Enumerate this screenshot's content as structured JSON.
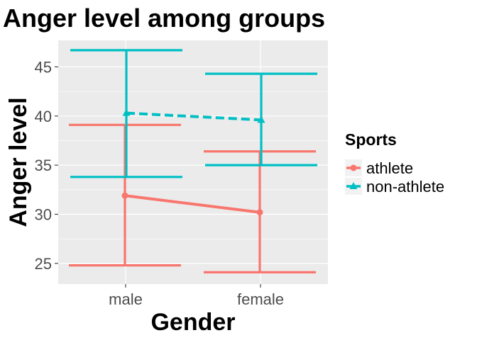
{
  "chart_data": {
    "type": "line",
    "title": "Anger level among groups",
    "xlabel": "Gender",
    "ylabel": "Anger level",
    "categories": [
      "male",
      "female"
    ],
    "ylim": [
      22.9,
      47.7
    ],
    "yticks": [
      25,
      30,
      35,
      40,
      45
    ],
    "grid": true,
    "legend": {
      "title": "Sports",
      "position": "right"
    },
    "series": [
      {
        "name": "athlete",
        "color": "#F8766D",
        "linestyle": "solid",
        "marker": "circle",
        "values": [
          31.9,
          30.2
        ],
        "lower": [
          24.8,
          24.1
        ],
        "upper": [
          39.1,
          36.4
        ]
      },
      {
        "name": "non-athlete",
        "color": "#00BFC4",
        "linestyle": "dashed",
        "marker": "triangle",
        "values": [
          40.3,
          39.6
        ],
        "lower": [
          33.8,
          35.0
        ],
        "upper": [
          46.7,
          44.3
        ]
      }
    ]
  }
}
